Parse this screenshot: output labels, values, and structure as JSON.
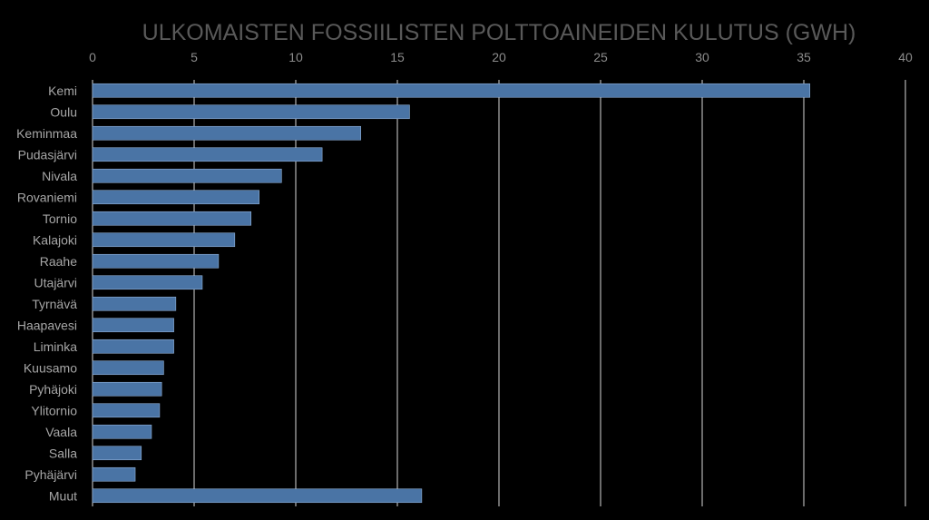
{
  "chart_data": {
    "type": "bar",
    "orientation": "horizontal",
    "title": "ULKOMAISTEN FOSSIILISTEN POLTTOAINEIDEN KULUTUS (GWH)",
    "xlabel": "",
    "ylabel": "",
    "xlim": [
      0,
      40
    ],
    "ticks": [
      0,
      5,
      10,
      15,
      20,
      25,
      30,
      35,
      40
    ],
    "grid": true,
    "categories": [
      "Kemi",
      "Oulu",
      "Keminmaa",
      "Pudasjärvi",
      "Nivala",
      "Rovaniemi",
      "Tornio",
      "Kalajoki",
      "Raahe",
      "Utajärvi",
      "Tyrnävä",
      "Haapavesi",
      "Liminka",
      "Kuusamo",
      "Pyhäjoki",
      "Ylitornio",
      "Vaala",
      "Salla",
      "Pyhäjärvi",
      "Muut"
    ],
    "values": [
      35.3,
      15.6,
      13.2,
      11.3,
      9.3,
      8.2,
      7.8,
      7.0,
      6.2,
      5.4,
      4.1,
      4.0,
      4.0,
      3.5,
      3.4,
      3.3,
      2.9,
      2.4,
      2.1,
      16.2
    ],
    "colors": {
      "background": "#000000",
      "bar": "#4a74a5",
      "bar_edge": "#8fb0d6",
      "grid": "#d9d9d9",
      "title": "#595959",
      "tick": "#8c8c8c",
      "category": "#a6a6a6"
    }
  }
}
